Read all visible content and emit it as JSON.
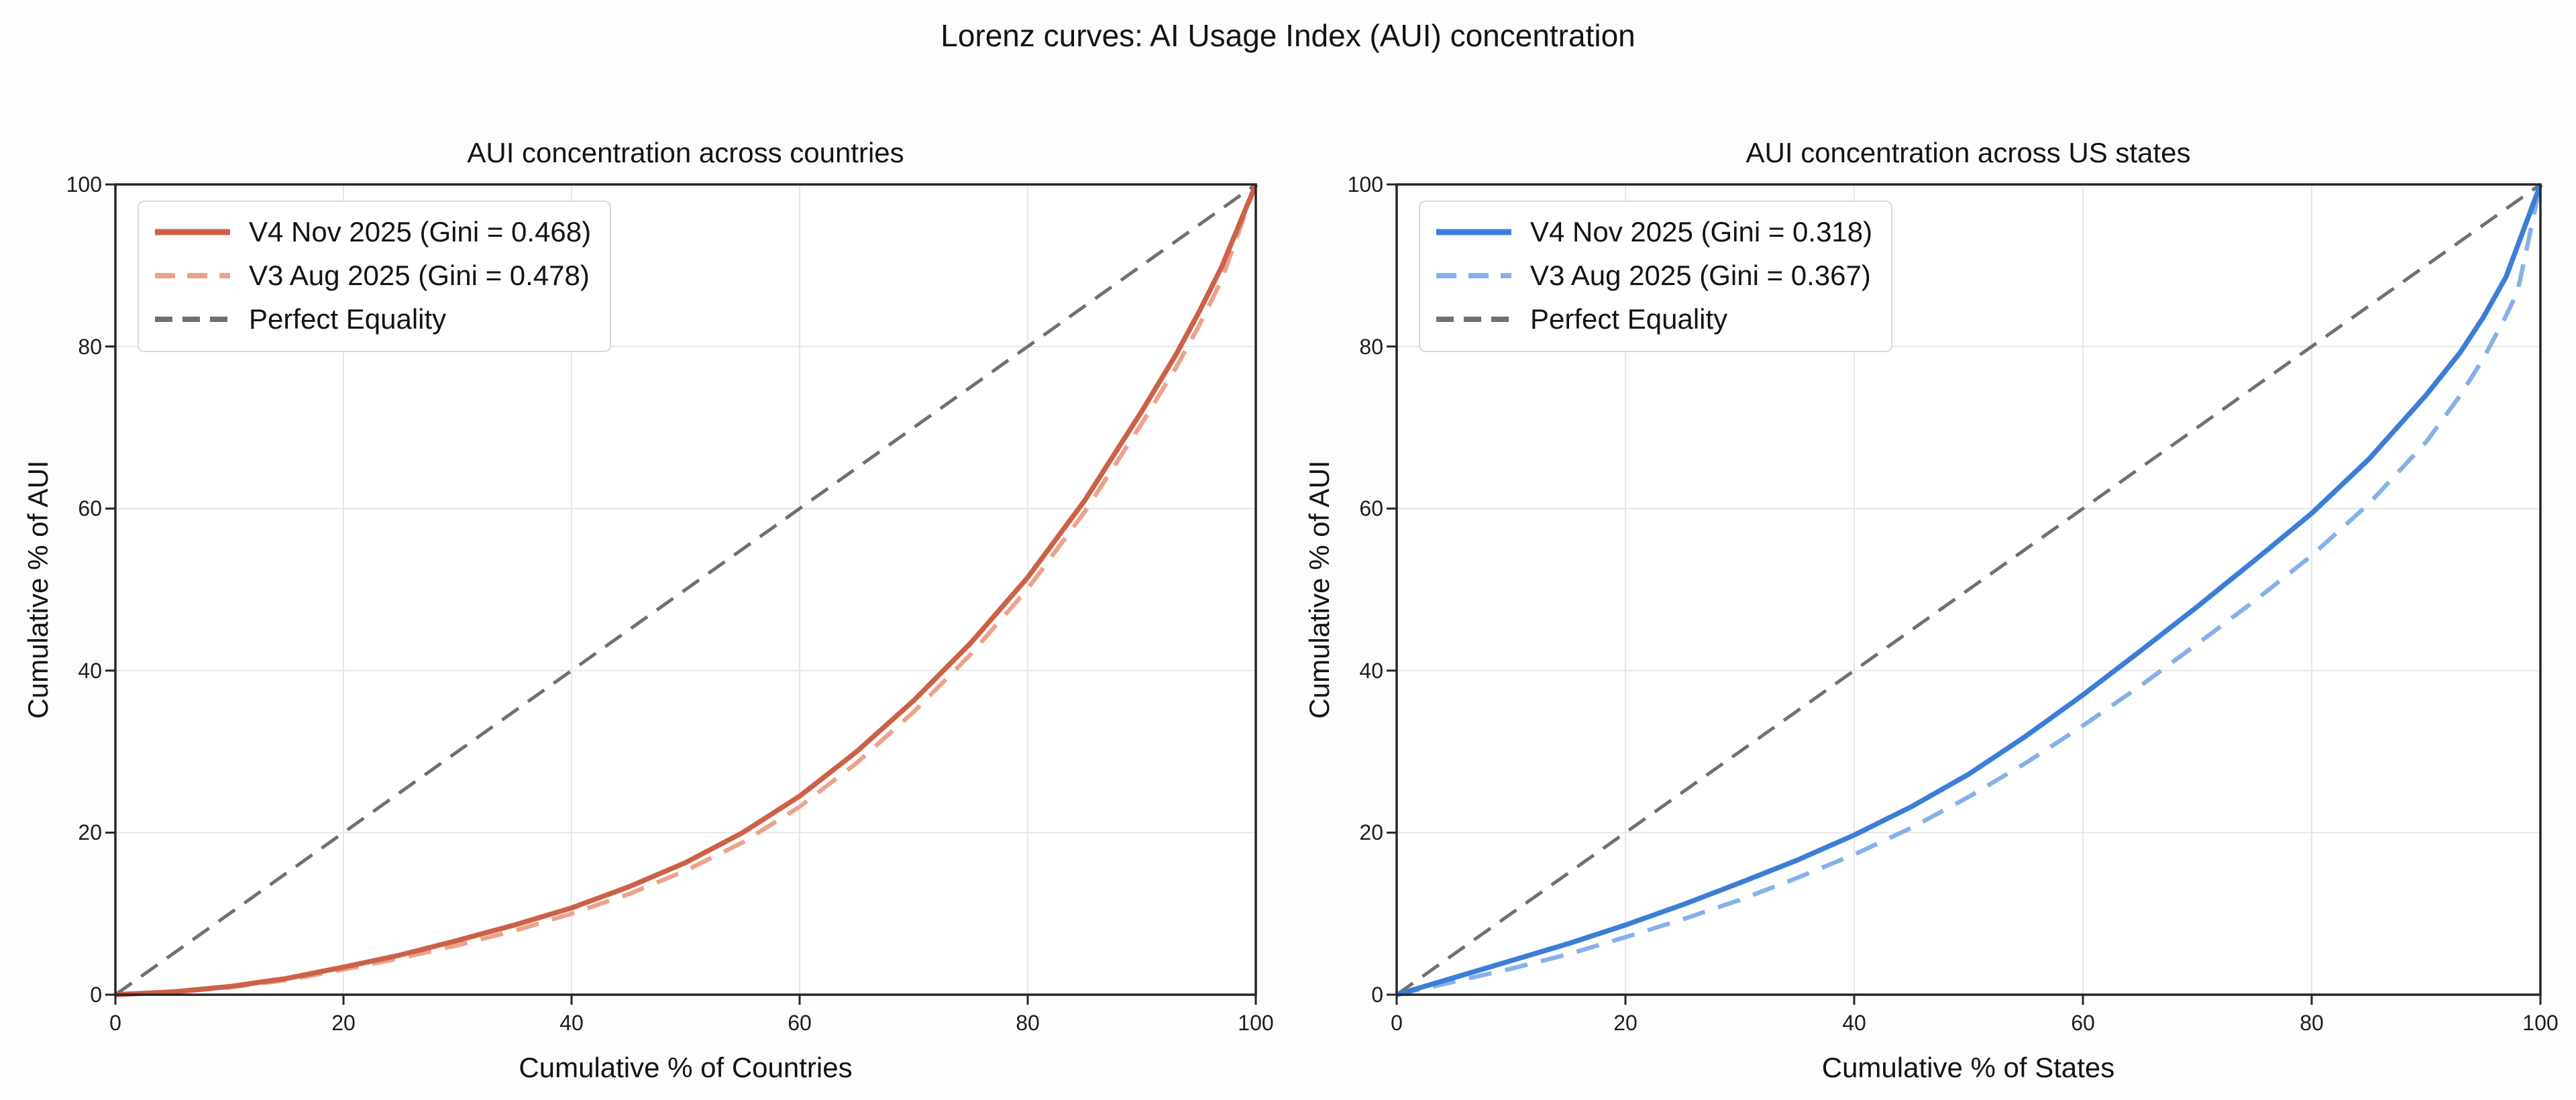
{
  "page": {
    "suptitle": "Lorenz curves: AI Usage Index (AUI) concentration"
  },
  "colors": {
    "background": "#fdfdfb",
    "axes_background": "#ffffff",
    "grid": "#e6e6e6",
    "spine": "#262626",
    "text": "#131313",
    "left_solid": "#cc6148",
    "left_dashed": "#eda28b",
    "right_solid": "#3b7ed8",
    "right_dashed": "#86b1e8",
    "equality": "#707070"
  },
  "chart_data": [
    {
      "type": "line",
      "title": "AUI concentration across countries",
      "xlabel": "Cumulative % of Countries",
      "ylabel": "Cumulative % of AUI",
      "xlim": [
        0,
        100
      ],
      "ylim": [
        0,
        100
      ],
      "xticks": [
        0,
        20,
        40,
        60,
        80,
        100
      ],
      "yticks": [
        0,
        20,
        40,
        60,
        80,
        100
      ],
      "grid": true,
      "legend_position": "upper left",
      "series": [
        {
          "name": "V4 Nov 2025 (Gini = 0.468)",
          "gini": 0.468,
          "color": "#cc6148",
          "style": "solid",
          "width": 7.5,
          "points": [
            [
              0,
              0
            ],
            [
              5,
              0.35
            ],
            [
              10,
              1.0
            ],
            [
              15,
              2.0
            ],
            [
              20,
              3.4
            ],
            [
              25,
              4.9
            ],
            [
              30,
              6.7
            ],
            [
              35,
              8.6
            ],
            [
              40,
              10.7
            ],
            [
              45,
              13.3
            ],
            [
              50,
              16.3
            ],
            [
              55,
              20.0
            ],
            [
              60,
              24.5
            ],
            [
              65,
              30.0
            ],
            [
              70,
              36.3
            ],
            [
              75,
              43.4
            ],
            [
              80,
              51.5
            ],
            [
              85,
              61.0
            ],
            [
              90,
              72.0
            ],
            [
              93,
              79.0
            ],
            [
              95,
              84.2
            ],
            [
              97,
              89.8
            ],
            [
              100,
              100
            ]
          ]
        },
        {
          "name": "V3 Aug 2025 (Gini = 0.478)",
          "gini": 0.478,
          "color": "#eda28b",
          "style": "dashed",
          "width": 6.5,
          "points": [
            [
              0,
              0
            ],
            [
              5,
              0.3
            ],
            [
              10,
              0.9
            ],
            [
              15,
              1.8
            ],
            [
              20,
              3.1
            ],
            [
              25,
              4.5
            ],
            [
              30,
              6.1
            ],
            [
              35,
              7.9
            ],
            [
              40,
              10.0
            ],
            [
              45,
              12.4
            ],
            [
              50,
              15.3
            ],
            [
              55,
              18.8
            ],
            [
              60,
              23.2
            ],
            [
              65,
              28.6
            ],
            [
              70,
              34.9
            ],
            [
              75,
              42.0
            ],
            [
              80,
              50.1
            ],
            [
              85,
              59.6
            ],
            [
              90,
              70.5
            ],
            [
              93,
              77.4
            ],
            [
              95,
              82.5
            ],
            [
              97,
              88.2
            ],
            [
              100,
              100
            ]
          ]
        },
        {
          "name": "Perfect Equality",
          "color": "#707070",
          "style": "dashed-fine",
          "width": 5,
          "points": [
            [
              0,
              0
            ],
            [
              100,
              100
            ]
          ]
        }
      ]
    },
    {
      "type": "line",
      "title": "AUI concentration across US states",
      "xlabel": "Cumulative % of States",
      "ylabel": "Cumulative % of AUI",
      "xlim": [
        0,
        100
      ],
      "ylim": [
        0,
        100
      ],
      "xticks": [
        0,
        20,
        40,
        60,
        80,
        100
      ],
      "yticks": [
        0,
        20,
        40,
        60,
        80,
        100
      ],
      "grid": true,
      "legend_position": "upper left",
      "series": [
        {
          "name": "V4 Nov 2025 (Gini = 0.318)",
          "gini": 0.318,
          "color": "#3b7ed8",
          "style": "solid",
          "width": 7.5,
          "points": [
            [
              0,
              0
            ],
            [
              5,
              2.1
            ],
            [
              10,
              4.2
            ],
            [
              15,
              6.3
            ],
            [
              20,
              8.6
            ],
            [
              25,
              11.1
            ],
            [
              30,
              13.8
            ],
            [
              35,
              16.6
            ],
            [
              40,
              19.7
            ],
            [
              45,
              23.2
            ],
            [
              50,
              27.2
            ],
            [
              55,
              31.9
            ],
            [
              60,
              37.0
            ],
            [
              65,
              42.4
            ],
            [
              70,
              47.9
            ],
            [
              75,
              53.6
            ],
            [
              80,
              59.4
            ],
            [
              85,
              66.1
            ],
            [
              90,
              74.0
            ],
            [
              93,
              79.3
            ],
            [
              95,
              83.6
            ],
            [
              97,
              88.6
            ],
            [
              100,
              100
            ]
          ]
        },
        {
          "name": "V3 Aug 2025 (Gini = 0.367)",
          "gini": 0.367,
          "color": "#86b1e8",
          "style": "dashed",
          "width": 6.5,
          "points": [
            [
              0,
              0
            ],
            [
              5,
              1.6
            ],
            [
              10,
              3.2
            ],
            [
              15,
              5.0
            ],
            [
              20,
              7.1
            ],
            [
              25,
              9.3
            ],
            [
              30,
              11.7
            ],
            [
              35,
              14.4
            ],
            [
              40,
              17.3
            ],
            [
              45,
              20.6
            ],
            [
              50,
              24.4
            ],
            [
              55,
              28.6
            ],
            [
              60,
              33.2
            ],
            [
              65,
              38.1
            ],
            [
              70,
              43.3
            ],
            [
              75,
              48.6
            ],
            [
              80,
              54.2
            ],
            [
              85,
              60.6
            ],
            [
              90,
              68.2
            ],
            [
              93,
              74.0
            ],
            [
              95,
              78.5
            ],
            [
              97,
              83.8
            ],
            [
              98,
              86.8
            ],
            [
              100,
              100
            ]
          ]
        },
        {
          "name": "Perfect Equality",
          "color": "#707070",
          "style": "dashed-fine",
          "width": 5,
          "points": [
            [
              0,
              0
            ],
            [
              100,
              100
            ]
          ]
        }
      ]
    }
  ]
}
